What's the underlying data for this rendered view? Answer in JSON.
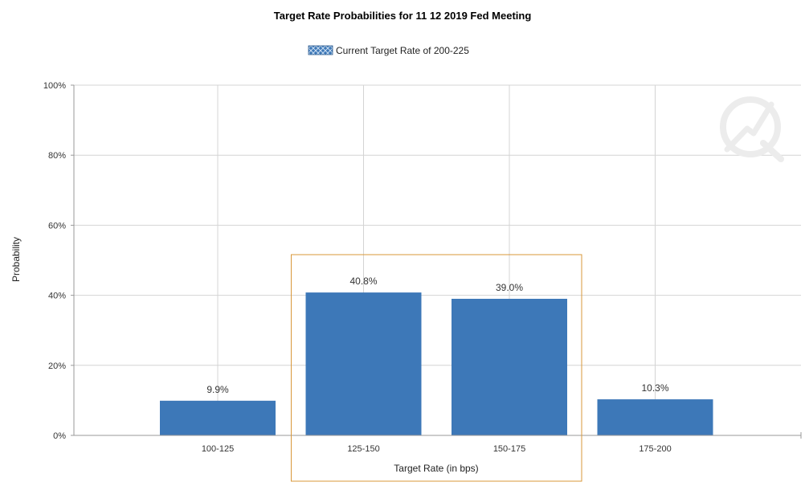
{
  "chart_data": {
    "type": "bar",
    "title": "Target Rate Probabilities for 11 12 2019 Fed Meeting",
    "legend": {
      "label": "Current Target Rate of 200-225",
      "placement": "top-center"
    },
    "xlabel": "Target Rate (in bps)",
    "ylabel": "Probability",
    "categories": [
      "100-125",
      "125-150",
      "150-175",
      "175-200"
    ],
    "values": [
      9.9,
      40.8,
      39.0,
      10.3
    ],
    "data_labels": [
      "9.9%",
      "40.8%",
      "39.0%",
      "10.3%"
    ],
    "ylim": [
      0,
      100
    ],
    "yticks": [
      0,
      20,
      40,
      60,
      80,
      100
    ],
    "ytick_labels": [
      "0%",
      "20%",
      "40%",
      "60%",
      "80%",
      "100%"
    ],
    "grid": true,
    "highlighted_categories": [
      "125-150",
      "150-175"
    ],
    "colors": {
      "bar": "#3d78b8",
      "grid": "#d4d4d4",
      "highlight_box": "#d9973a"
    }
  }
}
